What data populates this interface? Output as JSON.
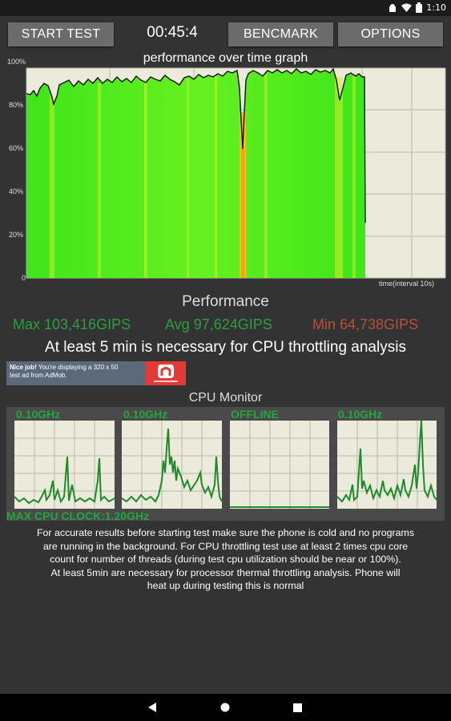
{
  "status_bar": {
    "time": "1:10",
    "icons": [
      "android-icon",
      "wifi-icon",
      "battery-icon"
    ]
  },
  "toolbar": {
    "start_label": "START TEST",
    "timer": "00:45:4",
    "benchmark_label": "BENCMARK",
    "options_label": "OPTIONS"
  },
  "graph": {
    "title": "performance over time graph",
    "y_ticks": [
      "100%",
      "80%",
      "60%",
      "40%",
      "20%",
      "0"
    ],
    "x_label": "time(interval 10s)"
  },
  "performance": {
    "heading": "Performance",
    "max": "Max 103,416GIPS",
    "avg": "Avg 97,624GIPS",
    "min": "Min 64,738GIPS",
    "max_color": "#2e9e3f",
    "avg_color": "#2e9e3f",
    "min_color": "#b5523b",
    "warning": "At least 5 min is necessary for CPU throttling analysis"
  },
  "ad": {
    "line1_bold": "Nice job!",
    "line1_rest": " You're displaying a 320 x 50",
    "line2": "test ad from AdMob."
  },
  "cpu_monitor": {
    "title": "CPU Monitor",
    "cores": [
      {
        "label": "0.10GHz"
      },
      {
        "label": "0.10GHz"
      },
      {
        "label": "OFFLINE"
      },
      {
        "label": "0.10GHz"
      }
    ],
    "max_clock": "MAX CPU CLOCK:1.20GHz",
    "line_color": "#1f8a2a"
  },
  "note": {
    "line1": "For accurate results before starting test make sure the phone is cold and no programs",
    "line2": "are running in the background. For CPU throttling test use at least 2 times cpu core",
    "line3": "count for number of threads (during test cpu utilization should be near or 100%).",
    "line4": "At least 5min are necessary for processor thermal throttling analysis. Phone will",
    "line5": "heat up during testing this is normal"
  },
  "nav": {
    "icons": [
      "back-icon",
      "home-icon",
      "recents-icon"
    ]
  }
}
